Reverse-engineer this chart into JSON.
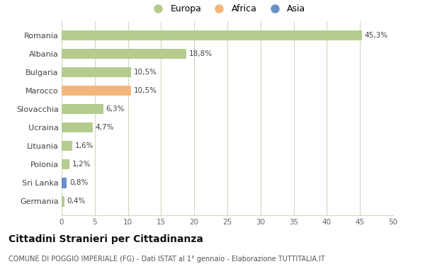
{
  "countries": [
    "Romania",
    "Albania",
    "Bulgaria",
    "Marocco",
    "Slovacchia",
    "Ucraina",
    "Lituania",
    "Polonia",
    "Sri Lanka",
    "Germania"
  ],
  "values": [
    45.3,
    18.8,
    10.5,
    10.5,
    6.3,
    4.7,
    1.6,
    1.2,
    0.8,
    0.4
  ],
  "labels": [
    "45,3%",
    "18,8%",
    "10,5%",
    "10,5%",
    "6,3%",
    "4,7%",
    "1,6%",
    "1,2%",
    "0,8%",
    "0,4%"
  ],
  "continents": [
    "Europa",
    "Europa",
    "Europa",
    "Africa",
    "Europa",
    "Europa",
    "Europa",
    "Europa",
    "Asia",
    "Europa"
  ],
  "colors": {
    "Europa": "#b5cc8e",
    "Africa": "#f4b67a",
    "Asia": "#6a8fc8"
  },
  "xlim": [
    0,
    50
  ],
  "xticks": [
    0,
    5,
    10,
    15,
    20,
    25,
    30,
    35,
    40,
    45,
    50
  ],
  "title": "Cittadini Stranieri per Cittadinanza",
  "subtitle": "COMUNE DI POGGIO IMPERIALE (FG) - Dati ISTAT al 1° gennaio - Elaborazione TUTTITALIA.IT",
  "background_color": "#ffffff",
  "grid_color": "#d0d8c0",
  "bar_height": 0.55
}
